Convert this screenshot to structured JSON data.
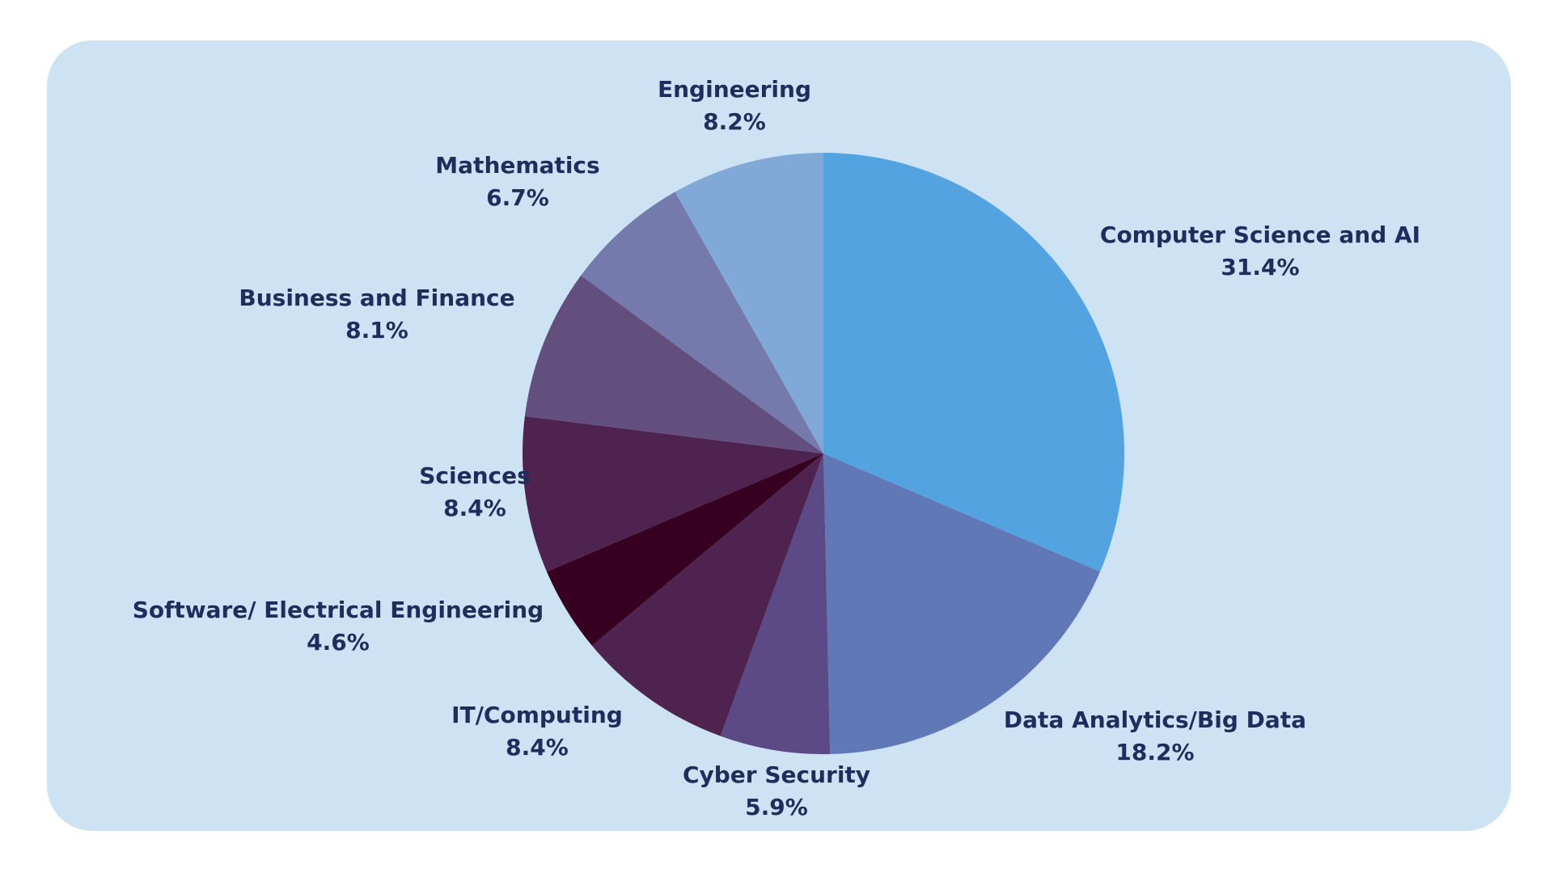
{
  "chart_data": {
    "type": "pie",
    "title": "",
    "slices": [
      {
        "label": "Computer Science and AI",
        "value": 31.4,
        "value_label": "31.4%",
        "color": "#52a3e0"
      },
      {
        "label": "Data Analytics/Big Data",
        "value": 18.2,
        "value_label": "18.2%",
        "color": "#6078b6"
      },
      {
        "label": "Cyber Security",
        "value": 5.9,
        "value_label": "5.9%",
        "color": "#5b4a86"
      },
      {
        "label": "IT/Computing",
        "value": 8.4,
        "value_label": "8.4%",
        "color": "#4f2350"
      },
      {
        "label": "Software/ Electrical Engineering",
        "value": 4.6,
        "value_label": "4.6%",
        "color": "#370020"
      },
      {
        "label": "Sciences",
        "value": 8.4,
        "value_label": "8.4%",
        "color": "#4f2350"
      },
      {
        "label": "Business and Finance",
        "value": 8.1,
        "value_label": "8.1%",
        "color": "#634f7d"
      },
      {
        "label": "Mathematics",
        "value": 6.7,
        "value_label": "6.7%",
        "color": "#747aac"
      },
      {
        "label": "Engineering",
        "value": 8.2,
        "value_label": "8.2%",
        "color": "#80a9d7"
      }
    ],
    "start_angle": "12 o'clock",
    "direction": "clockwise",
    "label_color": "#1f2d5c",
    "background_color": "#cde3f4"
  }
}
